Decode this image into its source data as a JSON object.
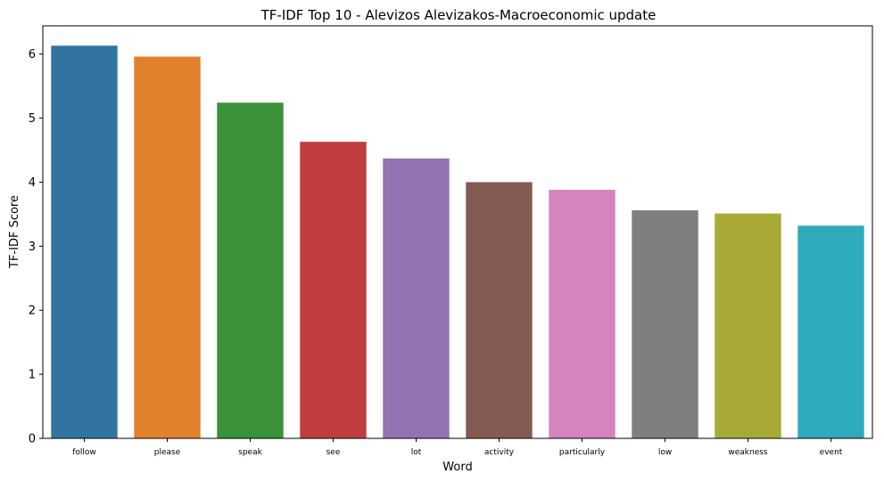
{
  "chart_data": {
    "type": "bar",
    "title": "TF-IDF Top 10 - Alevizos Alevizakos-Macroeconomic update",
    "xlabel": "Word",
    "ylabel": "TF-IDF Score",
    "categories": [
      "follow",
      "please",
      "speak",
      "see",
      "lot",
      "activity",
      "particularly",
      "low",
      "weakness",
      "event"
    ],
    "values": [
      6.13,
      5.96,
      5.24,
      4.63,
      4.37,
      4.0,
      3.88,
      3.56,
      3.51,
      3.32
    ],
    "colors": [
      "#3274a1",
      "#e1812c",
      "#3a923a",
      "#c03d3e",
      "#9372b2",
      "#845b53",
      "#d684bd",
      "#7f7f7f",
      "#a9aa35",
      "#2eaabd"
    ],
    "ylim": [
      0,
      6.44
    ],
    "yticks": [
      0,
      1,
      2,
      3,
      4,
      5,
      6
    ],
    "grid": false,
    "legend": "none"
  }
}
